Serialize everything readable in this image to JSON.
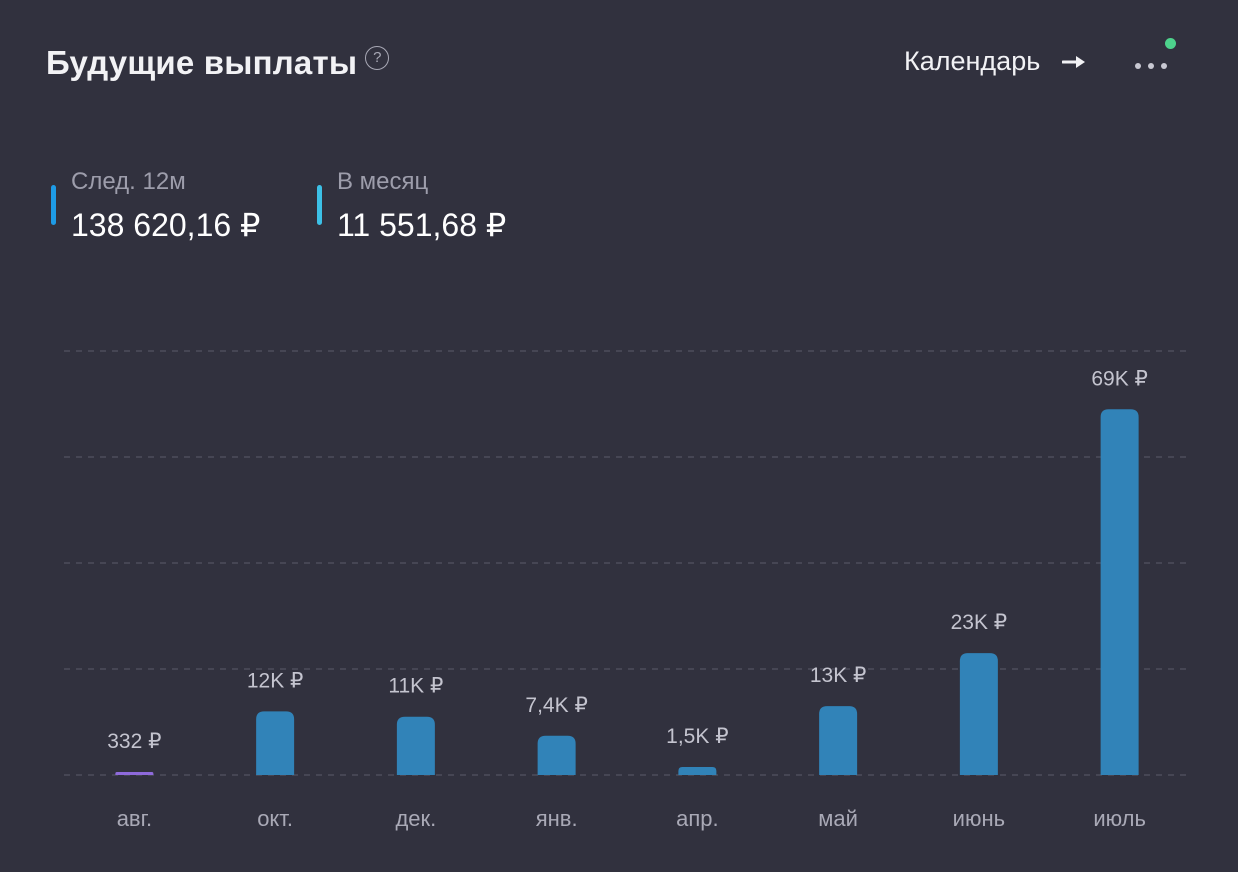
{
  "header": {
    "title": "Будущие выплаты",
    "help_icon": "?"
  },
  "calendar": {
    "label": "Календарь",
    "icon": "arrow-right-icon"
  },
  "menu": {
    "icon": "more-horizontal-icon"
  },
  "stats": [
    {
      "label": "След. 12м",
      "value": "138 620,16 ₽",
      "color": "#1e9be6"
    },
    {
      "label": "В месяц",
      "value": "11 551,68 ₽",
      "color": "#3cc0e6"
    }
  ],
  "colors": {
    "background": "#31313e",
    "bar": "#3183b8",
    "bar_small": "#8e6adb",
    "status": "#4dd28c"
  },
  "chart_data": {
    "type": "bar",
    "categories": [
      "авг.",
      "окт.",
      "дек.",
      "янв.",
      "апр.",
      "май",
      "июнь",
      "июль"
    ],
    "values": [
      332,
      12000,
      11000,
      7400,
      1500,
      13000,
      23000,
      69000
    ],
    "data_labels": [
      "332 ₽",
      "12K ₽",
      "11K ₽",
      "7,4K ₽",
      "1,5K ₽",
      "13K ₽",
      "23K ₽",
      "69K ₽"
    ],
    "ylim": [
      0,
      80000
    ],
    "grid": true
  }
}
